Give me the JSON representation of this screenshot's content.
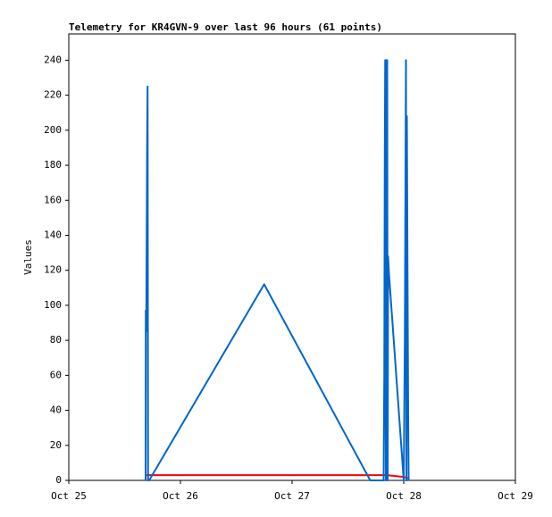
{
  "chart_data": {
    "type": "line",
    "title": "Telemetry for KR4GVN-9 over last 96 hours (61 points)",
    "y_label": "Values",
    "xlim": [
      25,
      29
    ],
    "xticks": [
      {
        "value": 25,
        "label": "Oct 25"
      },
      {
        "value": 26,
        "label": "Oct 26"
      },
      {
        "value": 27,
        "label": "Oct 27"
      },
      {
        "value": 28,
        "label": "Oct 28"
      },
      {
        "value": 29,
        "label": "Oct 29"
      }
    ],
    "ylim": [
      0,
      255
    ],
    "yticks": [
      0,
      20,
      40,
      60,
      80,
      100,
      120,
      140,
      160,
      180,
      200,
      220,
      240
    ],
    "series": [
      {
        "color": "#0066cc",
        "x": [
          25.688,
          25.69,
          25.694,
          25.698,
          25.702,
          25.706,
          25.71,
          25.72,
          26.75,
          27.7,
          27.82,
          27.826,
          27.83,
          27.834,
          27.84,
          27.844,
          27.848,
          27.852,
          27.856,
          27.86,
          27.868,
          28.0,
          28.01,
          28.016,
          28.02,
          28.024,
          28.028,
          28.034,
          28.04,
          28.044
        ],
        "values": [
          0,
          97,
          85,
          140,
          196,
          225,
          0,
          0,
          112,
          0,
          0,
          61,
          180,
          240,
          0,
          240,
          0,
          240,
          0,
          128,
          118,
          0,
          80,
          176,
          240,
          0,
          208,
          120,
          35,
          0
        ]
      },
      {
        "color": "#ff0000",
        "x": [
          25.69,
          27.85,
          28.0,
          28.05
        ],
        "values": [
          3,
          3,
          2,
          1
        ]
      }
    ]
  }
}
